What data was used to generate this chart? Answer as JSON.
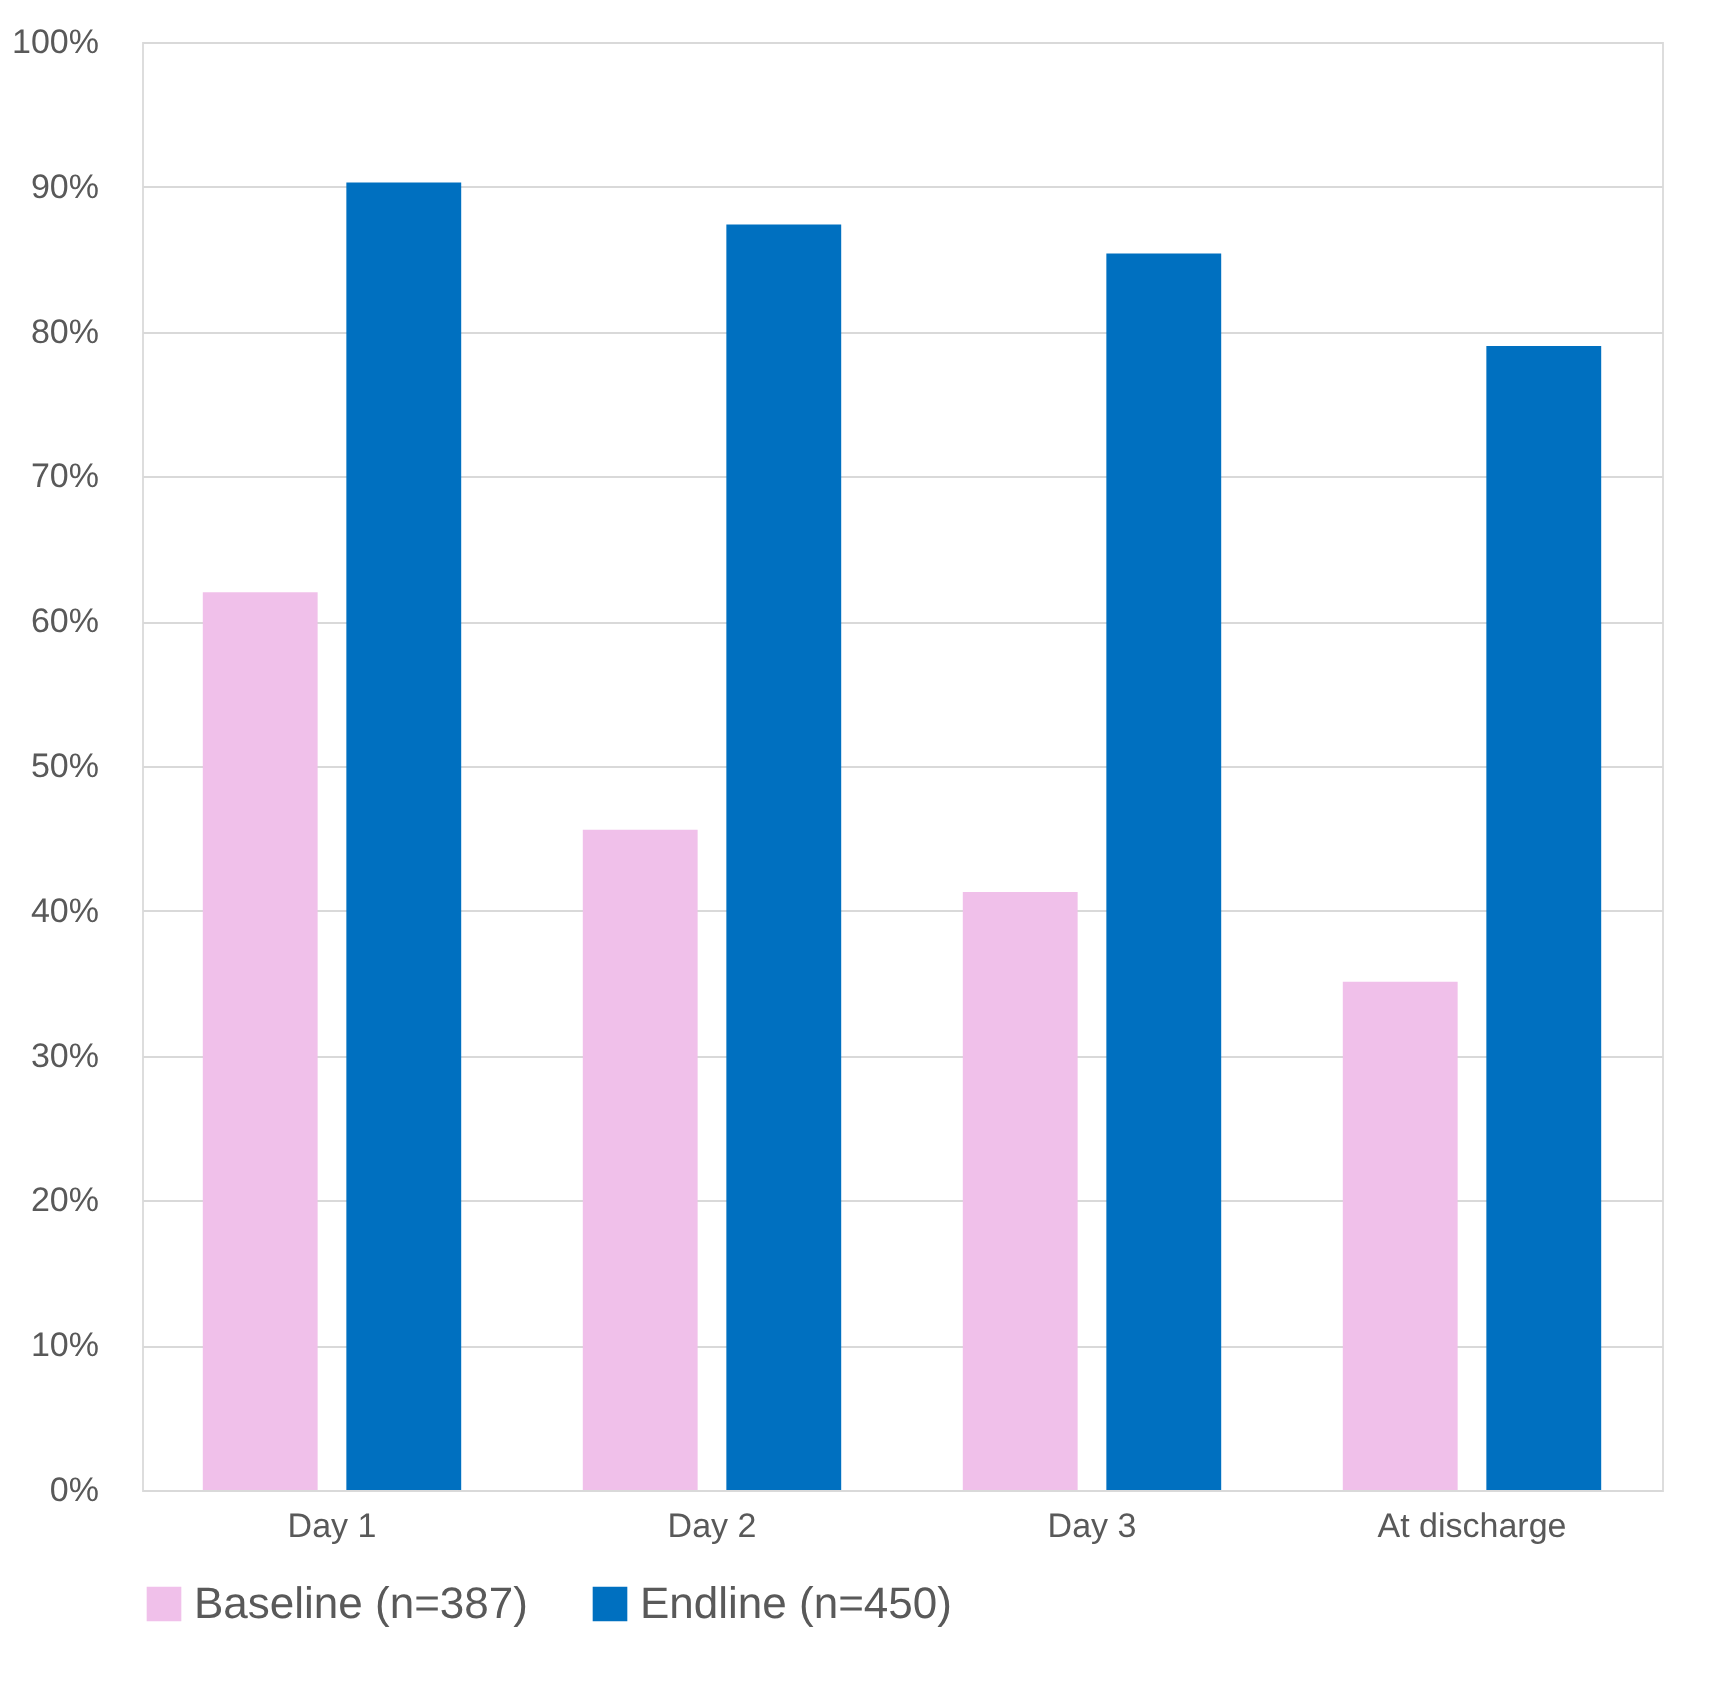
{
  "chart_data": {
    "type": "bar",
    "categories": [
      "Day 1",
      "Day 2",
      "Day 3",
      "At discharge"
    ],
    "series": [
      {
        "name": "Baseline (n=387)",
        "color": "#f0c0ea",
        "values": [
          62.0,
          45.6,
          41.3,
          35.1
        ]
      },
      {
        "name": "Endline (n=450)",
        "color": "#0070c0",
        "values": [
          90.3,
          87.4,
          85.4,
          79.0
        ]
      }
    ],
    "ylim": [
      0,
      100
    ],
    "yticks": [
      {
        "value": 0,
        "label": "0%"
      },
      {
        "value": 10,
        "label": "10%"
      },
      {
        "value": 20,
        "label": "20%"
      },
      {
        "value": 30,
        "label": "30%"
      },
      {
        "value": 40,
        "label": "40%"
      },
      {
        "value": 50,
        "label": "50%"
      },
      {
        "value": 60,
        "label": "60%"
      },
      {
        "value": 70,
        "label": "70%"
      },
      {
        "value": 80,
        "label": "80%"
      },
      {
        "value": 90,
        "label": "90%"
      },
      {
        "value": 100,
        "label": "100%"
      }
    ],
    "grid": "y",
    "legend": "bottom"
  }
}
